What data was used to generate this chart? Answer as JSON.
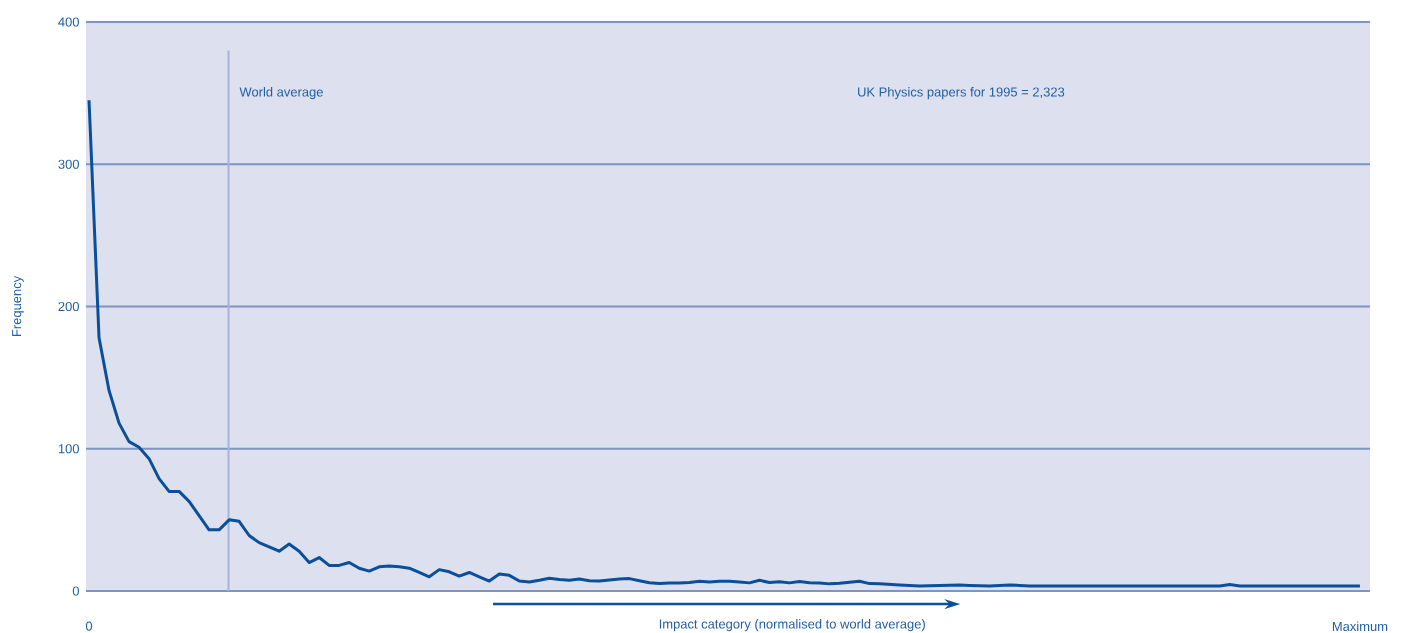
{
  "chart_data": {
    "type": "line",
    "xlabel": "Impact category (normalised to world average)",
    "ylabel": "Frequency",
    "annotations": [
      "World average",
      "UK Physics papers for 1995 = 2,323"
    ],
    "ylim": [
      0,
      400
    ],
    "yticks": [
      0,
      100,
      200,
      300,
      400
    ],
    "grid": "y",
    "color": "#0a4f9a",
    "categories": [
      "0",
      null,
      null,
      null,
      null,
      null,
      null,
      null,
      null,
      null,
      null,
      null,
      null,
      null,
      null,
      null,
      null,
      null,
      null,
      null,
      null,
      null,
      null,
      null,
      null,
      null,
      null,
      null,
      null,
      null,
      null,
      null,
      null,
      null,
      null,
      null,
      null,
      null,
      null,
      null,
      null,
      null,
      null,
      null,
      null,
      null,
      null,
      null,
      null,
      null,
      null,
      null,
      null,
      null,
      null,
      null,
      null,
      null,
      null,
      null,
      null,
      null,
      null,
      null,
      null,
      null,
      null,
      null,
      null,
      null,
      null,
      null,
      null,
      null,
      null,
      null,
      null,
      null,
      null,
      null,
      null,
      null,
      null,
      null,
      null,
      null,
      null,
      null,
      null,
      null,
      null,
      null,
      null,
      null,
      null,
      null,
      null,
      null,
      null,
      null,
      null,
      null,
      null,
      null,
      null,
      null,
      null,
      null,
      null,
      null,
      null,
      null,
      null,
      null,
      null,
      null,
      null,
      null,
      null,
      null,
      null,
      null,
      null,
      null,
      null,
      null,
      null,
      "Maximum"
    ],
    "values": [
      345,
      178,
      141,
      118,
      105,
      101,
      93,
      79,
      70,
      70,
      63,
      53,
      43,
      43,
      50,
      49,
      39,
      34,
      31,
      28,
      33,
      28,
      20,
      23.5,
      18,
      18,
      20,
      16,
      14,
      17,
      17.5,
      17,
      16,
      13,
      10,
      15,
      13.5,
      10.5,
      13,
      10,
      7,
      12,
      11,
      7,
      6.3,
      7.5,
      9,
      8,
      7.5,
      8.4,
      7.2,
      7,
      7.7,
      8.5,
      8.7,
      7.2,
      5.8,
      5.2,
      5.6,
      5.6,
      6,
      6.8,
      6.3,
      6.8,
      6.8,
      6.3,
      5.7,
      7.5,
      6,
      6.5,
      5.7,
      6.6,
      5.8,
      5.6,
      5,
      5.4,
      6.2,
      6.8,
      5.2,
      5,
      4.6,
      4.2,
      3.9,
      3.5,
      3.7,
      3.9,
      4.1,
      4.2,
      3.9,
      3.7,
      3.5,
      3.9,
      4.2,
      3.9,
      3.5,
      3.5,
      3.5,
      3.5,
      3.5,
      3.5,
      3.5,
      3.5,
      3.5,
      3.5,
      3.5,
      3.5,
      3.5,
      3.5,
      3.5,
      3.5,
      3.5,
      3.5,
      3.5,
      3.5,
      4.5,
      3.5,
      3.5,
      3.5,
      3.5,
      3.5,
      3.5,
      3.5,
      3.5,
      3.5,
      3.5,
      3.5,
      3.5,
      3.5
    ]
  }
}
